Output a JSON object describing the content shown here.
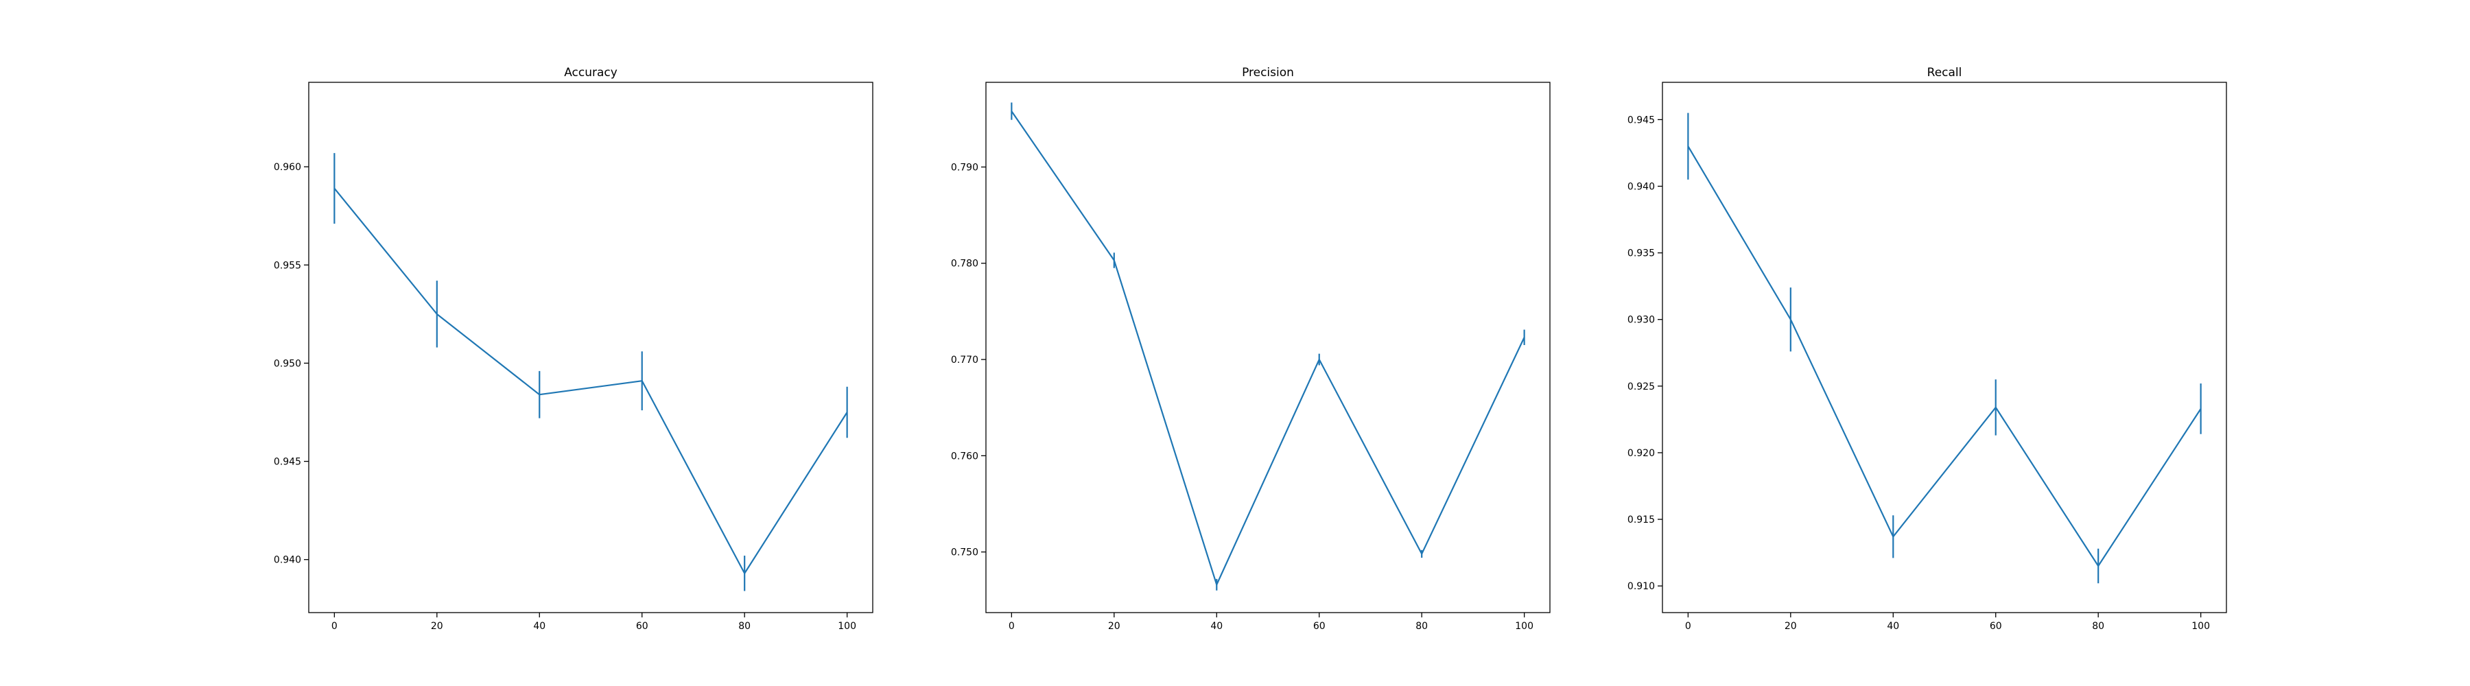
{
  "chart_data": [
    {
      "type": "line",
      "title": "Accuracy",
      "xlabel": "",
      "ylabel": "",
      "x": [
        0,
        20,
        40,
        60,
        80,
        100
      ],
      "x_ticks": [
        "0",
        "20",
        "40",
        "60",
        "80",
        "100"
      ],
      "y_ticks": [
        "0.940",
        "0.945",
        "0.950",
        "0.955",
        "0.960"
      ],
      "y_tick_values": [
        0.94,
        0.945,
        0.95,
        0.955,
        0.96
      ],
      "xlim": [
        -5,
        105
      ],
      "ylim": [
        0.9373,
        0.9643
      ],
      "grid": false,
      "series": [
        {
          "values": [
            0.9589,
            0.9525,
            0.9484,
            0.9491,
            0.9393,
            0.9475
          ],
          "error": [
            0.0018,
            0.0017,
            0.0012,
            0.0015,
            0.0009,
            0.0013
          ],
          "color": "#1f77b4"
        }
      ]
    },
    {
      "type": "line",
      "title": "Precision",
      "xlabel": "",
      "ylabel": "",
      "x": [
        0,
        20,
        40,
        60,
        80,
        100
      ],
      "x_ticks": [
        "0",
        "20",
        "40",
        "60",
        "80",
        "100"
      ],
      "y_ticks": [
        "0.750",
        "0.760",
        "0.770",
        "0.780",
        "0.790"
      ],
      "y_tick_values": [
        0.75,
        0.76,
        0.77,
        0.78,
        0.79
      ],
      "xlim": [
        -5,
        105
      ],
      "ylim": [
        0.7437,
        0.7988
      ],
      "grid": false,
      "series": [
        {
          "values": [
            0.7958,
            0.7803,
            0.7466,
            0.77,
            0.7498,
            0.7723
          ],
          "error": [
            0.0009,
            0.0008,
            0.0006,
            0.0006,
            0.0004,
            0.0008
          ],
          "color": "#1f77b4"
        }
      ]
    },
    {
      "type": "line",
      "title": "Recall",
      "xlabel": "",
      "ylabel": "",
      "x": [
        0,
        20,
        40,
        60,
        80,
        100
      ],
      "x_ticks": [
        "0",
        "20",
        "40",
        "60",
        "80",
        "100"
      ],
      "y_ticks": [
        "0.910",
        "0.915",
        "0.920",
        "0.925",
        "0.930",
        "0.935",
        "0.940",
        "0.945"
      ],
      "y_tick_values": [
        0.91,
        0.915,
        0.92,
        0.925,
        0.93,
        0.935,
        0.94,
        0.945
      ],
      "xlim": [
        -5,
        105
      ],
      "ylim": [
        0.908,
        0.9478
      ],
      "grid": false,
      "series": [
        {
          "values": [
            0.943,
            0.93,
            0.9137,
            0.9234,
            0.9115,
            0.9233
          ],
          "error": [
            0.0025,
            0.0024,
            0.0016,
            0.0021,
            0.0013,
            0.0019
          ],
          "color": "#1f77b4"
        }
      ]
    }
  ]
}
